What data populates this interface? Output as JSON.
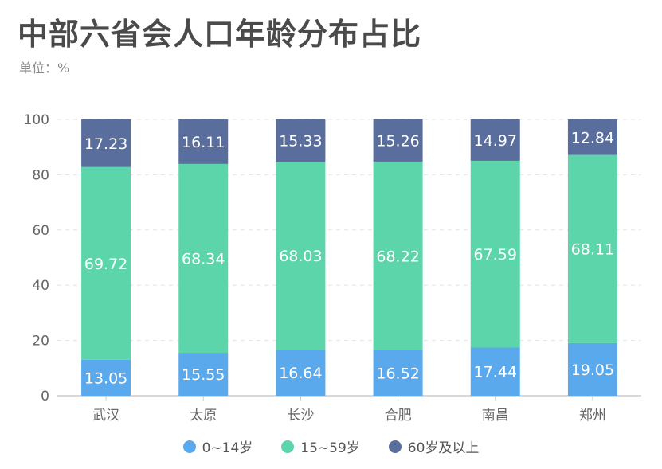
{
  "title": "中部六省会人口年龄分布占比",
  "unit_label": "单位：%",
  "colors": {
    "age_0_14": "#5aa9ec",
    "age_15_59": "#5dd5aa",
    "age_60_plus": "#5a6e9e",
    "axis_text": "#666666",
    "grid": "#e3e3e3"
  },
  "chart_data": {
    "type": "bar",
    "stacked": true,
    "categories": [
      "武汉",
      "太原",
      "长沙",
      "合肥",
      "南昌",
      "郑州"
    ],
    "series": [
      {
        "name": "0~14岁",
        "values": [
          13.05,
          15.55,
          16.64,
          16.52,
          17.44,
          19.05
        ]
      },
      {
        "name": "15~59岁",
        "values": [
          69.72,
          68.34,
          68.03,
          68.22,
          67.59,
          68.11
        ]
      },
      {
        "name": "60岁及以上",
        "values": [
          17.23,
          16.11,
          15.33,
          15.26,
          14.97,
          12.84
        ]
      }
    ],
    "yticks": [
      "0",
      "20",
      "40",
      "60",
      "80",
      "100"
    ],
    "ylim": [
      0,
      100
    ],
    "grid": true,
    "legend_position": "bottom-center"
  }
}
